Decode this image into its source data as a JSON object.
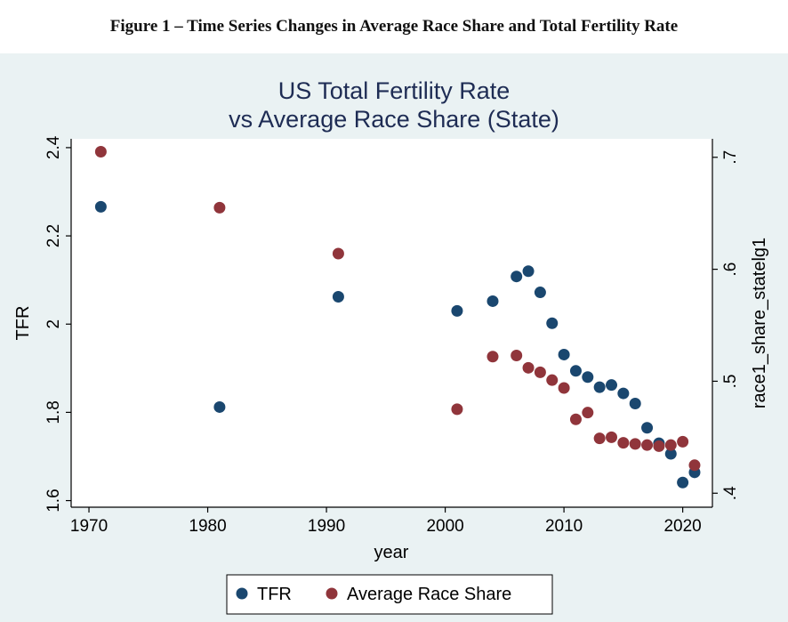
{
  "figure_caption": "Figure 1 – Time Series Changes in Average Race Share and Total Fertility Rate",
  "chart_data": {
    "type": "scatter",
    "title": "US Total Fertility Rate",
    "subtitle": "vs Average Race Share (State)",
    "xlabel": "year",
    "ylabel": "TFR",
    "y2label": "race1_share_statelg1",
    "xlim": [
      1968.5,
      2022.5
    ],
    "ylim": [
      1.585,
      2.42
    ],
    "y2lim": [
      0.3875,
      0.7165
    ],
    "x_ticks": [
      1970,
      1980,
      1990,
      2000,
      2010,
      2020
    ],
    "x_tick_labels": [
      "1970",
      "1980",
      "1990",
      "2000",
      "2010",
      "2020"
    ],
    "y_ticks": [
      1.6,
      1.8,
      2.0,
      2.2,
      2.4
    ],
    "y_tick_labels": [
      "1.6",
      "1.8",
      "2",
      "2.2",
      "2.4"
    ],
    "y2_ticks": [
      0.4,
      0.5,
      0.6,
      0.7
    ],
    "y2_tick_labels": [
      ".4",
      ".5",
      ".6",
      ".7"
    ],
    "grid": false,
    "legend_position": "bottom",
    "background_color": "#eaf2f3",
    "plot_background_color": "#ffffff",
    "series": [
      {
        "name": "TFR",
        "axis": "left",
        "color": "#1a476f",
        "x": [
          1971,
          1981,
          1991,
          2001,
          2004,
          2006,
          2007,
          2008,
          2009,
          2010,
          2011,
          2012,
          2013,
          2014,
          2015,
          2016,
          2017,
          2018,
          2019,
          2020,
          2021
        ],
        "y": [
          2.266,
          1.812,
          2.062,
          2.03,
          2.052,
          2.108,
          2.12,
          2.072,
          2.002,
          1.931,
          1.894,
          1.88,
          1.857,
          1.862,
          1.843,
          1.82,
          1.765,
          1.73,
          1.706,
          1.641,
          1.664
        ]
      },
      {
        "name": "Average Race Share",
        "axis": "right",
        "color": "#90353b",
        "x": [
          1971,
          1981,
          1991,
          2001,
          2004,
          2006,
          2007,
          2008,
          2009,
          2010,
          2011,
          2012,
          2013,
          2014,
          2015,
          2016,
          2017,
          2018,
          2019,
          2020,
          2021
        ],
        "y": [
          0.705,
          0.655,
          0.614,
          0.475,
          0.522,
          0.523,
          0.512,
          0.508,
          0.501,
          0.494,
          0.466,
          0.472,
          0.449,
          0.45,
          0.445,
          0.444,
          0.443,
          0.442,
          0.443,
          0.446,
          0.425
        ]
      }
    ]
  }
}
